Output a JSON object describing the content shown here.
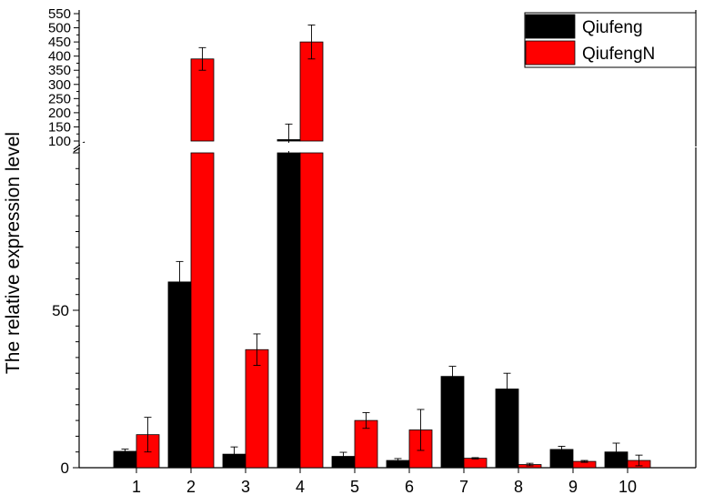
{
  "chart_data": {
    "type": "bar",
    "title": "",
    "xlabel": "",
    "ylabel": "The relative expression level",
    "categories": [
      "1",
      "2",
      "3",
      "4",
      "5",
      "6",
      "7",
      "8",
      "9",
      "10"
    ],
    "series": [
      {
        "name": "Qiufeng",
        "color": "#000000",
        "values": [
          5.2,
          59,
          4.3,
          105,
          3.6,
          2.3,
          29,
          25,
          5.8,
          5.0
        ],
        "errors": [
          0.7,
          6.5,
          2.3,
          55,
          1.3,
          0.6,
          3.2,
          5,
          1.0,
          2.8
        ]
      },
      {
        "name": "QiufengN",
        "color": "#ff0000",
        "values": [
          10.5,
          390,
          37.5,
          450,
          15,
          12,
          3.0,
          1.0,
          2.0,
          2.3
        ],
        "errors": [
          5.5,
          40,
          5,
          60,
          2.5,
          6.5,
          0.2,
          0.4,
          0.3,
          1.7
        ]
      }
    ],
    "axis_break": {
      "lower_range": [
        0,
        100
      ],
      "upper_range": [
        100,
        550
      ]
    },
    "y_ticks_lower": [
      "0",
      "50"
    ],
    "y_ticks_upper": [
      "100",
      "150",
      "200",
      "250",
      "300",
      "350",
      "400",
      "450",
      "500",
      "550"
    ],
    "legend_position": "top-right",
    "grid": false
  }
}
